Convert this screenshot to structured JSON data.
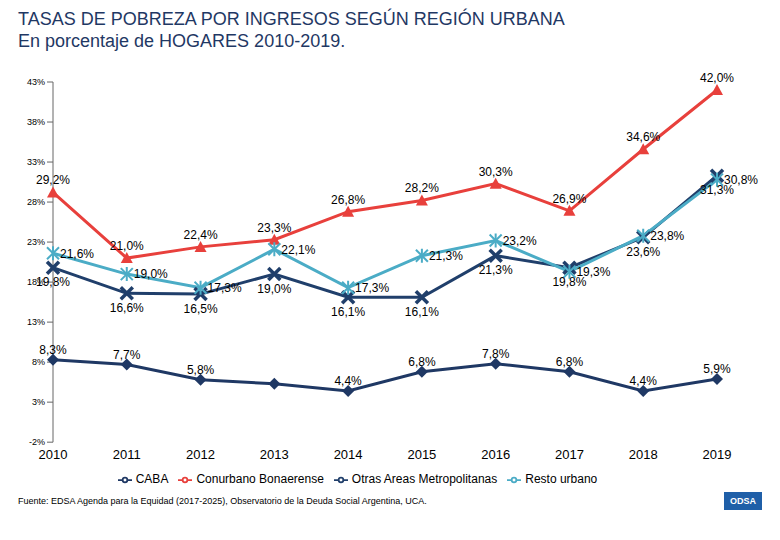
{
  "chart_data": {
    "type": "line",
    "title": "TASAS DE POBREZA POR INGRESOS SEGÚN REGIÓN URBANA",
    "subtitle": "En porcentaje de HOGARES 2010-2019.",
    "categories": [
      "2010",
      "2011",
      "2012",
      "2013",
      "2014",
      "2015",
      "2016",
      "2017",
      "2018",
      "2019"
    ],
    "series": [
      {
        "name": "CABA",
        "color": "#1f3864",
        "marker": "diamond",
        "values": [
          8.3,
          7.7,
          5.8,
          5.3,
          4.4,
          6.8,
          7.8,
          6.8,
          4.4,
          5.9
        ],
        "value_labels": [
          "8,3%",
          "7,7%",
          "5,8%",
          null,
          "4,4%",
          "6,8%",
          "7,8%",
          "6,8%",
          "4,4%",
          "5,9%"
        ]
      },
      {
        "name": "Conurbano Bonaerense",
        "color": "#e8403c",
        "marker": "triangle",
        "values": [
          29.2,
          21.0,
          22.4,
          23.3,
          26.8,
          28.2,
          30.3,
          26.9,
          34.6,
          42.0
        ],
        "value_labels": [
          "29,2%",
          "21,0%",
          "22,4%",
          "23,3%",
          "26,8%",
          "28,2%",
          "30,3%",
          "26,9%",
          "34,6%",
          "42,0%"
        ]
      },
      {
        "name": "Otras Areas Metropolitanas",
        "color": "#203f6b",
        "marker": "x",
        "values": [
          19.8,
          16.6,
          16.5,
          19.0,
          16.1,
          16.1,
          21.3,
          19.8,
          23.6,
          31.3
        ],
        "value_labels": [
          "19,8%",
          "16,6%",
          "16,5%",
          "19,0%",
          "16,1%",
          "16,1%",
          "21,3%",
          "19,8%",
          "23,6%",
          "31,3%"
        ]
      },
      {
        "name": "Resto urbano",
        "color": "#4bacc6",
        "marker": "star",
        "values": [
          21.6,
          19.0,
          17.3,
          22.1,
          17.3,
          21.3,
          23.2,
          19.3,
          23.8,
          30.8
        ],
        "value_labels": [
          "21,6%",
          "19,0%",
          "17,3%",
          "22,1%",
          "17,3%",
          "21,3%",
          "23,2%",
          "19,3%",
          "23,8%",
          "30,8%"
        ]
      }
    ],
    "ylim": [
      -2,
      43
    ],
    "yticks": [
      {
        "value": -2,
        "label": "-2%"
      },
      {
        "value": 3,
        "label": "3%"
      },
      {
        "value": 8,
        "label": "8%"
      },
      {
        "value": 13,
        "label": "13%"
      },
      {
        "value": 18,
        "label": "18%"
      },
      {
        "value": 23,
        "label": "23%"
      },
      {
        "value": 28,
        "label": "28%"
      },
      {
        "value": 33,
        "label": "33%"
      },
      {
        "value": 38,
        "label": "38%"
      },
      {
        "value": 43,
        "label": "43%"
      }
    ],
    "grid": false,
    "legend": "bottom",
    "data_labels": true,
    "source": "Fuente: EDSA Agenda para la Equidad (2017-2025), Observatorio de la Deuda Social Argentina, UCA.",
    "logo": "ODSA"
  }
}
